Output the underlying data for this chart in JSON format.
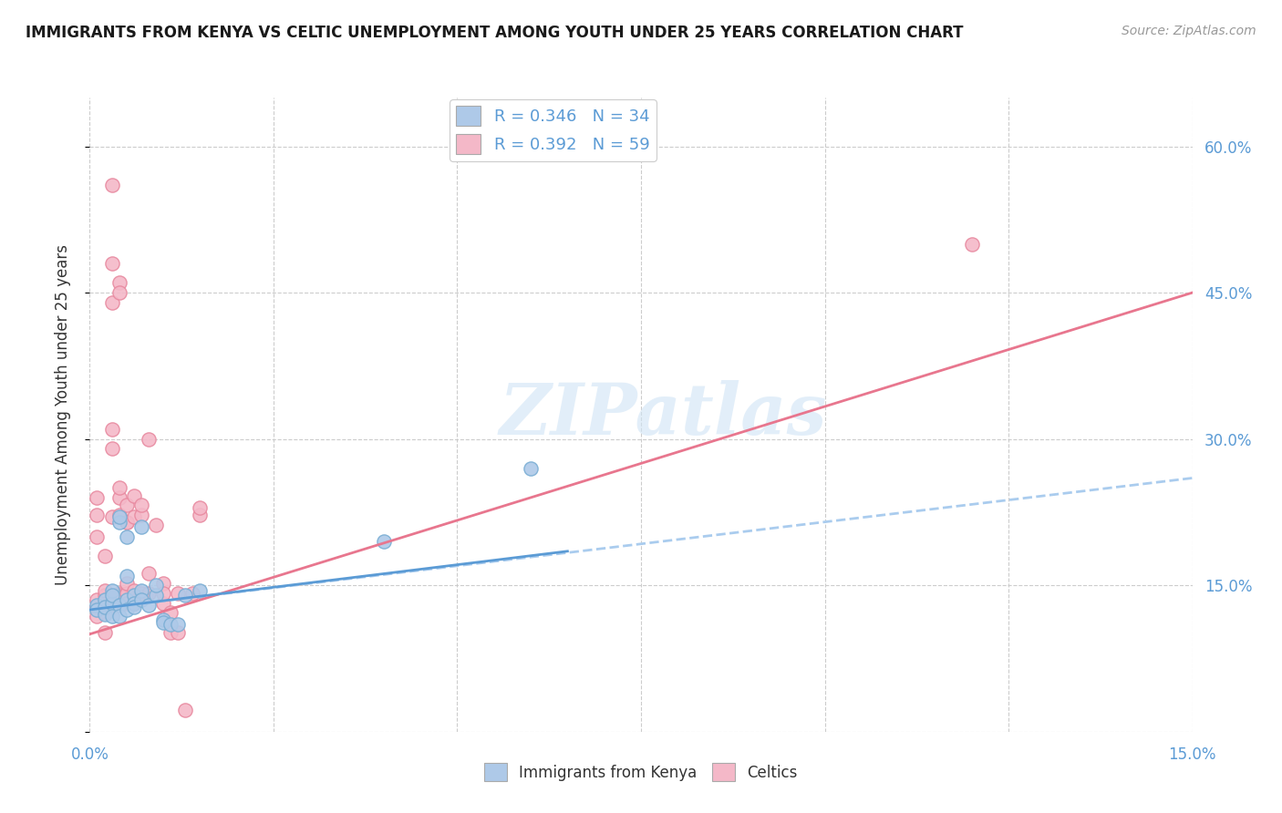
{
  "title": "IMMIGRANTS FROM KENYA VS CELTIC UNEMPLOYMENT AMONG YOUTH UNDER 25 YEARS CORRELATION CHART",
  "source": "Source: ZipAtlas.com",
  "ylabel": "Unemployment Among Youth under 25 years",
  "xlim": [
    0.0,
    0.15
  ],
  "ylim": [
    0.0,
    0.65
  ],
  "xticks": [
    0.0,
    0.025,
    0.05,
    0.075,
    0.1,
    0.125,
    0.15
  ],
  "xtick_labels": [
    "0.0%",
    "",
    "",
    "",
    "",
    "",
    "15.0%"
  ],
  "yticks": [
    0.0,
    0.15,
    0.3,
    0.45,
    0.6
  ],
  "ytick_right_labels": [
    "",
    "15.0%",
    "30.0%",
    "45.0%",
    "60.0%"
  ],
  "watermark": "ZIPatlas",
  "kenya_color": "#aec9e8",
  "kenya_edge": "#7aaed4",
  "celtic_color": "#f4b8c8",
  "celtic_edge": "#e88aa0",
  "kenya_R": 0.346,
  "kenya_N": 34,
  "celtic_R": 0.392,
  "celtic_N": 59,
  "kenya_line_color": "#5b9bd5",
  "celtic_line_color": "#e8768e",
  "kenya_line_style": "--",
  "celtic_line_style": "-",
  "background_color": "#ffffff",
  "grid_color": "#cccccc",
  "kenya_scatter": [
    [
      0.001,
      0.13
    ],
    [
      0.001,
      0.125
    ],
    [
      0.002,
      0.12
    ],
    [
      0.002,
      0.135
    ],
    [
      0.002,
      0.128
    ],
    [
      0.003,
      0.132
    ],
    [
      0.003,
      0.118
    ],
    [
      0.003,
      0.145
    ],
    [
      0.003,
      0.14
    ],
    [
      0.004,
      0.13
    ],
    [
      0.004,
      0.215
    ],
    [
      0.004,
      0.22
    ],
    [
      0.004,
      0.118
    ],
    [
      0.005,
      0.135
    ],
    [
      0.005,
      0.125
    ],
    [
      0.005,
      0.16
    ],
    [
      0.005,
      0.2
    ],
    [
      0.006,
      0.14
    ],
    [
      0.006,
      0.132
    ],
    [
      0.006,
      0.128
    ],
    [
      0.007,
      0.145
    ],
    [
      0.007,
      0.21
    ],
    [
      0.007,
      0.135
    ],
    [
      0.008,
      0.13
    ],
    [
      0.009,
      0.14
    ],
    [
      0.009,
      0.15
    ],
    [
      0.01,
      0.115
    ],
    [
      0.01,
      0.112
    ],
    [
      0.011,
      0.11
    ],
    [
      0.012,
      0.11
    ],
    [
      0.013,
      0.14
    ],
    [
      0.015,
      0.145
    ],
    [
      0.04,
      0.195
    ],
    [
      0.06,
      0.27
    ]
  ],
  "celtic_scatter": [
    [
      0.001,
      0.128
    ],
    [
      0.001,
      0.118
    ],
    [
      0.001,
      0.222
    ],
    [
      0.001,
      0.24
    ],
    [
      0.001,
      0.135
    ],
    [
      0.001,
      0.2
    ],
    [
      0.002,
      0.102
    ],
    [
      0.002,
      0.13
    ],
    [
      0.002,
      0.14
    ],
    [
      0.002,
      0.122
    ],
    [
      0.002,
      0.18
    ],
    [
      0.002,
      0.135
    ],
    [
      0.002,
      0.145
    ],
    [
      0.003,
      0.128
    ],
    [
      0.003,
      0.132
    ],
    [
      0.003,
      0.29
    ],
    [
      0.003,
      0.22
    ],
    [
      0.003,
      0.31
    ],
    [
      0.003,
      0.44
    ],
    [
      0.003,
      0.48
    ],
    [
      0.003,
      0.56
    ],
    [
      0.004,
      0.142
    ],
    [
      0.004,
      0.135
    ],
    [
      0.004,
      0.14
    ],
    [
      0.004,
      0.222
    ],
    [
      0.004,
      0.24
    ],
    [
      0.004,
      0.25
    ],
    [
      0.004,
      0.46
    ],
    [
      0.004,
      0.45
    ],
    [
      0.004,
      0.138
    ],
    [
      0.005,
      0.142
    ],
    [
      0.005,
      0.132
    ],
    [
      0.005,
      0.152
    ],
    [
      0.005,
      0.215
    ],
    [
      0.005,
      0.232
    ],
    [
      0.005,
      0.215
    ],
    [
      0.006,
      0.132
    ],
    [
      0.006,
      0.145
    ],
    [
      0.006,
      0.22
    ],
    [
      0.006,
      0.242
    ],
    [
      0.007,
      0.142
    ],
    [
      0.007,
      0.222
    ],
    [
      0.007,
      0.232
    ],
    [
      0.008,
      0.142
    ],
    [
      0.008,
      0.162
    ],
    [
      0.008,
      0.3
    ],
    [
      0.009,
      0.212
    ],
    [
      0.01,
      0.152
    ],
    [
      0.01,
      0.132
    ],
    [
      0.01,
      0.142
    ],
    [
      0.011,
      0.102
    ],
    [
      0.011,
      0.122
    ],
    [
      0.012,
      0.102
    ],
    [
      0.012,
      0.142
    ],
    [
      0.013,
      0.022
    ],
    [
      0.014,
      0.142
    ],
    [
      0.015,
      0.222
    ],
    [
      0.015,
      0.23
    ],
    [
      0.12,
      0.5
    ]
  ]
}
